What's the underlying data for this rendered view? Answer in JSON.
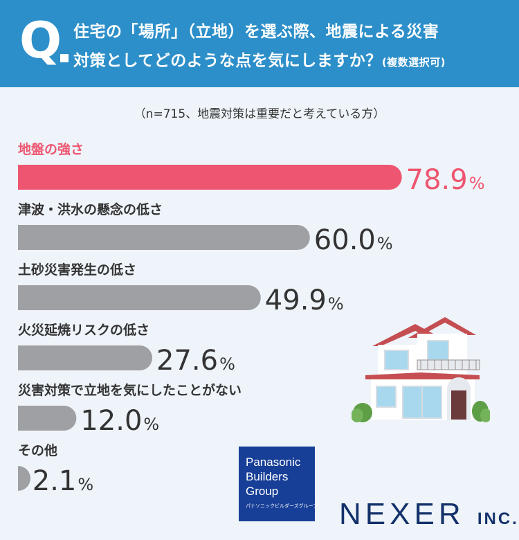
{
  "header": {
    "q_letter": "Q",
    "question_line1": "住宅の「場所」（立地）を選ぶ際、地震による災害",
    "question_line2": "対策としてどのような点を気にしますか？",
    "question_note": "(複数選択可)"
  },
  "sample_note": "（n=715、地震対策は重要だと考えている方）",
  "chart_data": {
    "type": "bar",
    "orientation": "horizontal",
    "categories": [
      "地盤の強さ",
      "津波・洪水の懸念の低さ",
      "土砂災害発生の低さ",
      "火災延焼リスクの低さ",
      "災害対策で立地を気にしたことがない",
      "その他"
    ],
    "values": [
      78.9,
      60.0,
      49.9,
      27.6,
      12.0,
      2.1
    ],
    "value_labels": [
      "78.9",
      "60.0",
      "49.9",
      "27.6",
      "12.0",
      "2.1"
    ],
    "unit": "%",
    "highlight_index": 0,
    "colors": {
      "highlight": "#ee5570",
      "default": "#9fa0a4"
    },
    "xlim": [
      0,
      100
    ],
    "grid": false,
    "legend": "none"
  },
  "logos": {
    "pbg": {
      "line1": "Panasonic",
      "line2": "Builders",
      "line3": "Group",
      "kana": "パナソニックビルダーズグループ"
    },
    "nexer": {
      "name": "NEXER",
      "suffix": "INC."
    }
  },
  "illustration": {
    "icon": "house-icon"
  },
  "colors": {
    "header": "#2d8fc9",
    "background": "#eef4f9",
    "nexer": "#13316b",
    "pbg": "#173f97"
  }
}
